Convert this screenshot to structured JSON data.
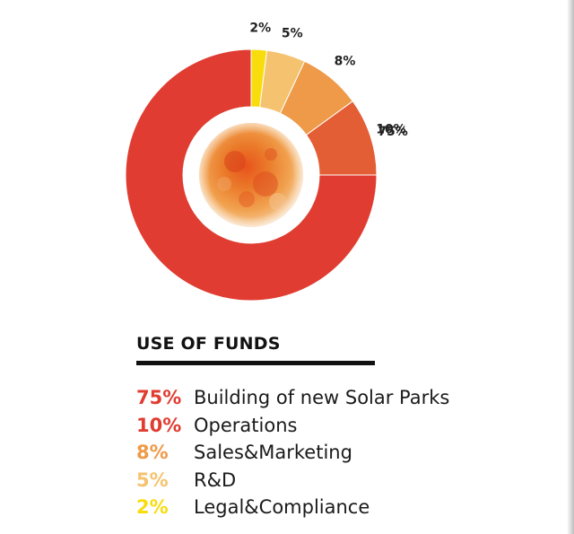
{
  "chart_data": {
    "type": "donut",
    "title": "USE OF FUNDS",
    "center_image": "sun",
    "slices": [
      {
        "label": "Building of new Solar Parks",
        "value": 75,
        "display": "75%",
        "color": "#e03c31"
      },
      {
        "label": "Operations",
        "value": 10,
        "display": "10%",
        "color": "#e35d35"
      },
      {
        "label": "Sales&Marketing",
        "value": 8,
        "display": "8%",
        "color": "#ee9a48"
      },
      {
        "label": "R&D",
        "value": 5,
        "display": "5%",
        "color": "#f5c36f"
      },
      {
        "label": "Legal&Compliance",
        "value": 2,
        "display": "2%",
        "color": "#f8dc0c"
      }
    ]
  },
  "legend": {
    "title": "USE OF FUNDS",
    "items": [
      {
        "percent": "75%",
        "label": "Building of new Solar Parks",
        "color": "#e03c31"
      },
      {
        "percent": "10%",
        "label": "Operations",
        "color": "#e03c31"
      },
      {
        "percent": "8%",
        "label": "Sales&Marketing",
        "color": "#ee9a48"
      },
      {
        "percent": "5%",
        "label": "R&D",
        "color": "#f5c36f"
      },
      {
        "percent": "2%",
        "label": "Legal&Compliance",
        "color": "#f8dc0c"
      }
    ]
  }
}
